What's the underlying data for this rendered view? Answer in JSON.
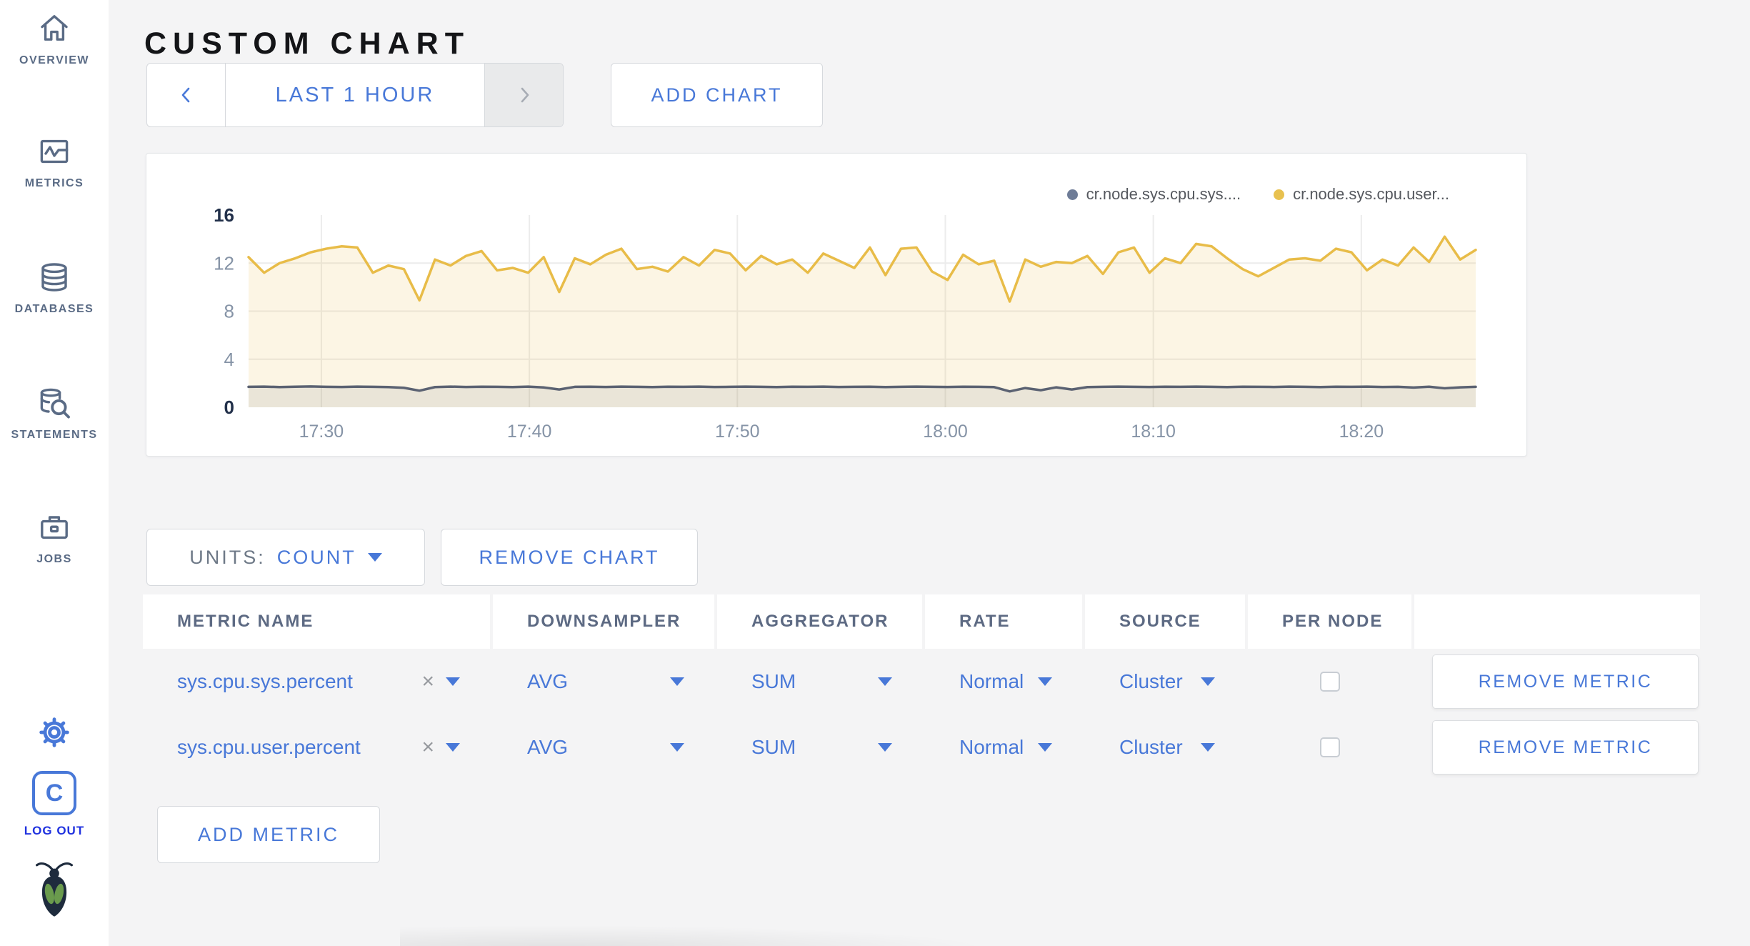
{
  "colors": {
    "accent_blue": "#4878D8",
    "logout_blue": "#2032DF",
    "sidebar_fg": "#5A6B85",
    "series_yellow": "#E8BC48",
    "series_gray": "#5B6272",
    "page_bg": "#F4F4F5"
  },
  "sidebar": {
    "items": [
      {
        "label": "OVERVIEW",
        "icon": "home-icon"
      },
      {
        "label": "METRICS",
        "icon": "line-chart-icon"
      },
      {
        "label": "DATABASES",
        "icon": "database-icon"
      },
      {
        "label": "STATEMENTS",
        "icon": "database-search-icon"
      },
      {
        "label": "JOBS",
        "icon": "briefcase-icon"
      }
    ],
    "logout_initial": "C",
    "logout_label": "LOG OUT"
  },
  "header": {
    "title": "CUSTOM CHART"
  },
  "toolbar": {
    "time_window": "LAST 1 HOUR",
    "add_chart": "ADD CHART"
  },
  "chart_card": {
    "legend": [
      {
        "label": "cr.node.sys.cpu.sys....",
        "color": "#6E7C97"
      },
      {
        "label": "cr.node.sys.cpu.user...",
        "color": "#E8C14F"
      }
    ]
  },
  "chart_data": {
    "type": "area",
    "title": "",
    "xlabel": "",
    "ylabel": "",
    "legend_position": "top-right",
    "grid": true,
    "x_axis": {
      "start_minute": 1046.5,
      "end_minute": 1105.5,
      "tick_minutes": [
        1050,
        1060,
        1070,
        1080,
        1090,
        1100
      ],
      "tick_labels": [
        "17:30",
        "17:40",
        "17:50",
        "18:00",
        "18:10",
        "18:20"
      ]
    },
    "y_axis": {
      "ylim": [
        0,
        16
      ],
      "ticks": [
        0,
        4,
        8,
        12,
        16
      ]
    },
    "series": [
      {
        "name": "cr.node.sys.cpu.sys....",
        "color": "#5B6272",
        "fill": "rgba(91,98,114,0.11)",
        "values": [
          1.7,
          1.72,
          1.68,
          1.71,
          1.73,
          1.7,
          1.69,
          1.72,
          1.7,
          1.68,
          1.62,
          1.38,
          1.68,
          1.72,
          1.69,
          1.71,
          1.7,
          1.68,
          1.72,
          1.65,
          1.48,
          1.7,
          1.71,
          1.69,
          1.72,
          1.7,
          1.68,
          1.71,
          1.7,
          1.72,
          1.69,
          1.7,
          1.72,
          1.7,
          1.68,
          1.71,
          1.7,
          1.72,
          1.69,
          1.7,
          1.71,
          1.68,
          1.7,
          1.72,
          1.7,
          1.69,
          1.71,
          1.7,
          1.68,
          1.32,
          1.6,
          1.42,
          1.66,
          1.48,
          1.68,
          1.7,
          1.72,
          1.7,
          1.69,
          1.71,
          1.7,
          1.72,
          1.7,
          1.68,
          1.71,
          1.7,
          1.69,
          1.72,
          1.7,
          1.68,
          1.71,
          1.7,
          1.72,
          1.69,
          1.7,
          1.64,
          1.71,
          1.58,
          1.66,
          1.7
        ]
      },
      {
        "name": "cr.node.sys.cpu.user...",
        "color": "#E8BC48",
        "fill": "rgba(232,188,72,0.15)",
        "values": [
          12.5,
          11.2,
          12.0,
          12.4,
          12.9,
          13.2,
          13.4,
          13.3,
          11.2,
          11.8,
          11.5,
          8.9,
          12.3,
          11.8,
          12.6,
          13.0,
          11.4,
          11.6,
          11.2,
          12.5,
          9.6,
          12.4,
          11.9,
          12.7,
          13.2,
          11.5,
          11.7,
          11.3,
          12.5,
          11.8,
          13.1,
          12.8,
          11.4,
          12.6,
          11.9,
          12.3,
          11.2,
          12.8,
          12.2,
          11.6,
          13.3,
          11.0,
          13.2,
          13.3,
          11.3,
          10.6,
          12.7,
          11.9,
          12.2,
          8.8,
          12.3,
          11.7,
          12.1,
          12.0,
          12.6,
          11.1,
          12.9,
          13.3,
          11.2,
          12.4,
          12.0,
          13.6,
          13.4,
          12.4,
          11.5,
          10.9,
          11.6,
          12.3,
          12.4,
          12.2,
          13.2,
          12.9,
          11.4,
          12.3,
          11.8,
          13.3,
          12.1,
          14.2,
          12.3,
          13.1
        ]
      }
    ]
  },
  "units_bar": {
    "units_label": "UNITS:",
    "units_value": "COUNT",
    "remove_chart": "REMOVE CHART"
  },
  "metrics_table": {
    "columns": [
      "METRIC NAME",
      "DOWNSAMPLER",
      "AGGREGATOR",
      "RATE",
      "SOURCE",
      "PER NODE",
      ""
    ],
    "rows": [
      {
        "metric": "sys.cpu.sys.percent",
        "clear": "×",
        "downsampler": "AVG",
        "aggregator": "SUM",
        "rate": "Normal",
        "source": "Cluster",
        "per_node": false,
        "remove": "REMOVE METRIC"
      },
      {
        "metric": "sys.cpu.user.percent",
        "clear": "×",
        "downsampler": "AVG",
        "aggregator": "SUM",
        "rate": "Normal",
        "source": "Cluster",
        "per_node": false,
        "remove": "REMOVE METRIC"
      }
    ],
    "add_metric": "ADD METRIC"
  }
}
